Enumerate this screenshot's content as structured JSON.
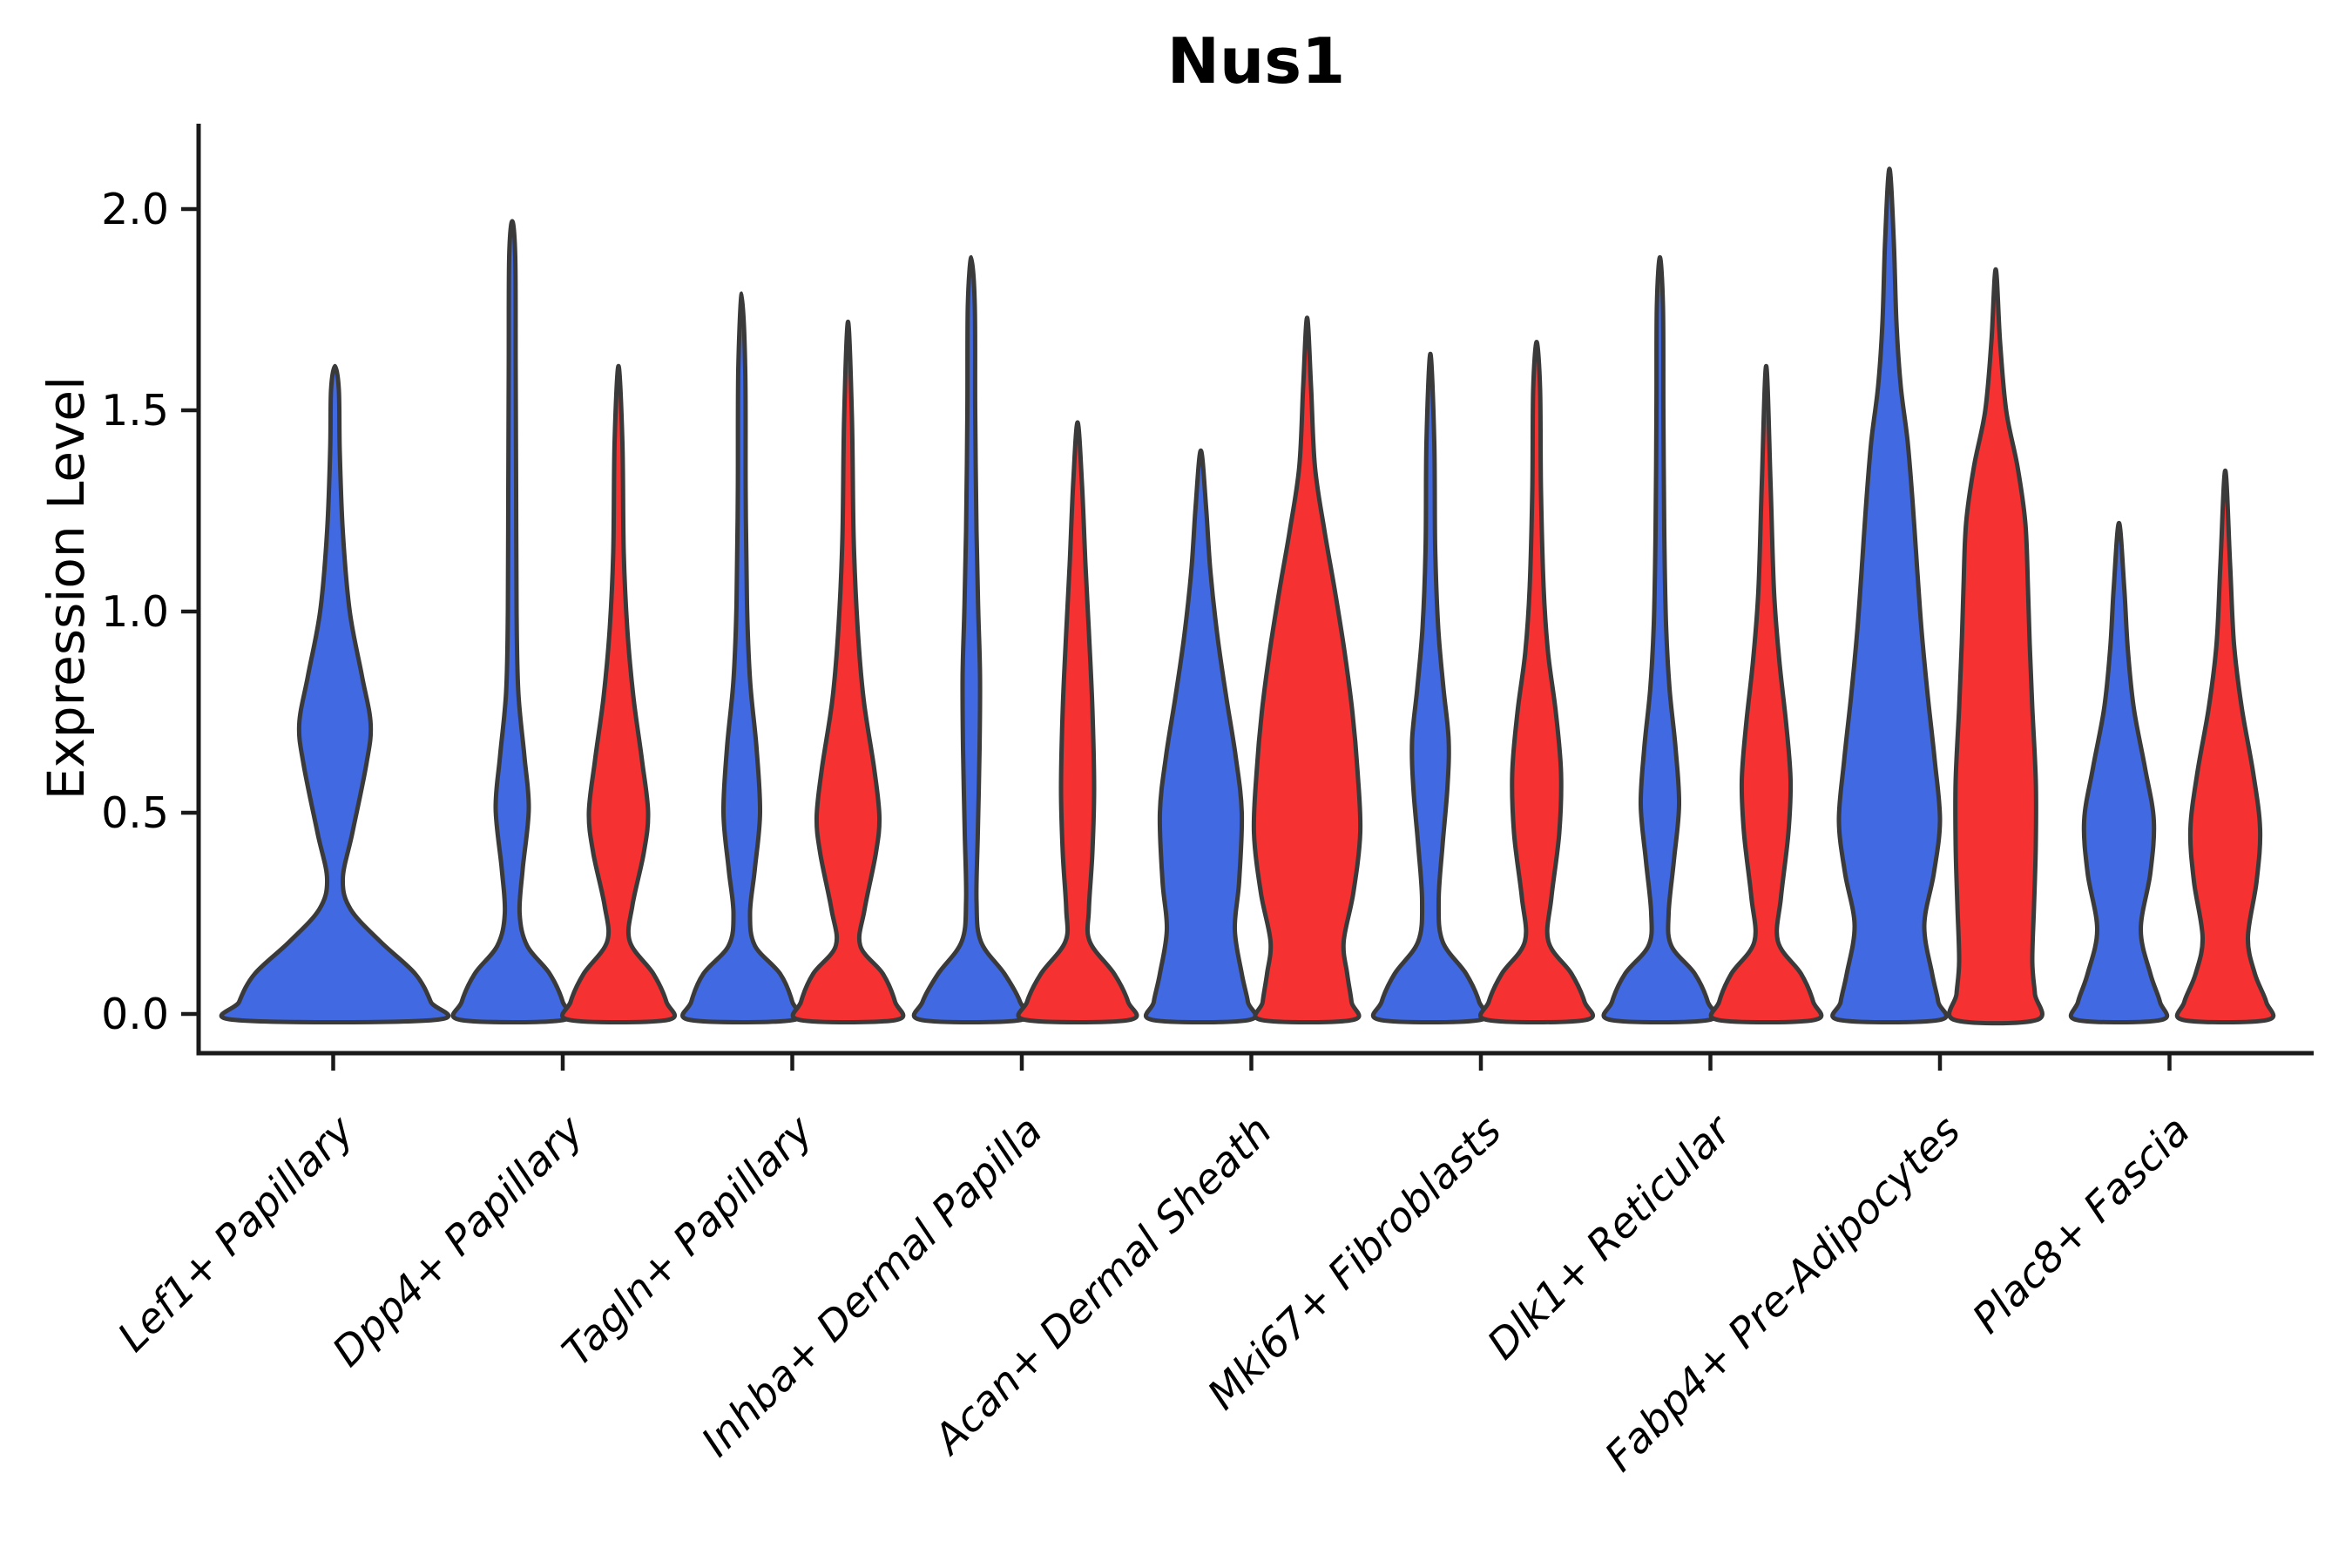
{
  "title": "Nus1",
  "y_axis": {
    "label": "Expression Level",
    "tick_labels": [
      "0.0",
      "0.5",
      "1.0",
      "1.5",
      "2.0"
    ]
  },
  "colors": {
    "blue": "#4169E1",
    "red": "#F53131",
    "outline": "#3A3A3A",
    "axis": "#1A1A1A",
    "text": "#000000"
  },
  "chart_data": {
    "type": "violin",
    "title": "Nus1",
    "ylabel": "Expression Level",
    "xlabel": "",
    "ylim": [
      -0.1,
      2.21
    ],
    "y_ticks": [
      0,
      0.5,
      1.0,
      1.5,
      2.0
    ],
    "grid": false,
    "legend": "none",
    "categories": [
      "Lef1+ Papillary",
      "Dpp4+ Papillary",
      "Tagln+ Papillary",
      "Inhba+ Dermal Papilla",
      "Acan+ Dermal Sheath",
      "Mki67+ Fibroblasts",
      "Dlk1+ Reticular",
      "Fabp4+ Pre-Adipocytes",
      "Plac8+ Fascia"
    ],
    "series_groups": [
      "blue",
      "red"
    ],
    "note": "Each violin profile is a list of [expression_value, half_width_px] pairs read bottom-to-top from the figure; first category has a single centered blue violin only.",
    "violins": [
      {
        "category_index": 0,
        "group": "blue",
        "peak": 1.61,
        "offset": 2,
        "profile": [
          [
            -0.015,
            114
          ],
          [
            0.03,
            110
          ],
          [
            0.1,
            92
          ],
          [
            0.18,
            52
          ],
          [
            0.26,
            18
          ],
          [
            0.335,
            9
          ],
          [
            0.45,
            20
          ],
          [
            0.62,
            36
          ],
          [
            0.72,
            41
          ],
          [
            0.84,
            31
          ],
          [
            1.0,
            17
          ],
          [
            1.2,
            9
          ],
          [
            1.4,
            5.5
          ],
          [
            1.55,
            4.5
          ],
          [
            1.61,
            0
          ]
        ]
      },
      {
        "category_index": 1,
        "group": "blue",
        "peak": 1.97,
        "offset": -58,
        "profile": [
          [
            -0.015,
            59
          ],
          [
            0.03,
            58
          ],
          [
            0.1,
            43
          ],
          [
            0.17,
            17
          ],
          [
            0.25,
            8.5
          ],
          [
            0.36,
            12
          ],
          [
            0.51,
            19
          ],
          [
            0.64,
            14
          ],
          [
            0.8,
            7
          ],
          [
            1.0,
            5
          ],
          [
            1.3,
            4.5
          ],
          [
            1.6,
            4
          ],
          [
            1.88,
            3.5
          ],
          [
            1.97,
            0
          ]
        ]
      },
      {
        "category_index": 1,
        "group": "red",
        "peak": 1.61,
        "offset": 64,
        "profile": [
          [
            -0.015,
            56
          ],
          [
            0.03,
            55
          ],
          [
            0.1,
            40
          ],
          [
            0.18,
            13
          ],
          [
            0.27,
            16
          ],
          [
            0.4,
            29
          ],
          [
            0.5,
            34
          ],
          [
            0.63,
            27
          ],
          [
            0.79,
            17
          ],
          [
            0.96,
            10
          ],
          [
            1.15,
            6
          ],
          [
            1.42,
            4.5
          ],
          [
            1.61,
            0
          ]
        ]
      },
      {
        "category_index": 2,
        "group": "blue",
        "peak": 1.79,
        "offset": -58,
        "profile": [
          [
            -0.015,
            59
          ],
          [
            0.03,
            58
          ],
          [
            0.1,
            44
          ],
          [
            0.17,
            15
          ],
          [
            0.25,
            9.5
          ],
          [
            0.36,
            15
          ],
          [
            0.5,
            21
          ],
          [
            0.66,
            17
          ],
          [
            0.83,
            9.5
          ],
          [
            1.02,
            6
          ],
          [
            1.3,
            4.5
          ],
          [
            1.6,
            4
          ],
          [
            1.79,
            0
          ]
        ]
      },
      {
        "category_index": 2,
        "group": "red",
        "peak": 1.72,
        "offset": 64,
        "profile": [
          [
            -0.015,
            55
          ],
          [
            0.03,
            54
          ],
          [
            0.1,
            40
          ],
          [
            0.17,
            14
          ],
          [
            0.26,
            19
          ],
          [
            0.4,
            32
          ],
          [
            0.49,
            36
          ],
          [
            0.61,
            30
          ],
          [
            0.78,
            18
          ],
          [
            0.96,
            11
          ],
          [
            1.18,
            6.5
          ],
          [
            1.48,
            4.5
          ],
          [
            1.72,
            0
          ]
        ]
      },
      {
        "category_index": 3,
        "group": "blue",
        "peak": 1.88,
        "offset": -58,
        "profile": [
          [
            -0.015,
            57
          ],
          [
            0.03,
            56
          ],
          [
            0.1,
            38
          ],
          [
            0.18,
            11
          ],
          [
            0.28,
            6
          ],
          [
            0.45,
            7.5
          ],
          [
            0.66,
            9.5
          ],
          [
            0.84,
            10
          ],
          [
            1.0,
            8
          ],
          [
            1.2,
            6
          ],
          [
            1.5,
            4.5
          ],
          [
            1.76,
            4
          ],
          [
            1.88,
            0
          ]
        ]
      },
      {
        "category_index": 3,
        "group": "red",
        "peak": 1.47,
        "offset": 64,
        "profile": [
          [
            -0.015,
            59
          ],
          [
            0.03,
            58
          ],
          [
            0.1,
            42
          ],
          [
            0.18,
            14
          ],
          [
            0.26,
            13
          ],
          [
            0.4,
            17
          ],
          [
            0.56,
            19
          ],
          [
            0.76,
            17
          ],
          [
            0.95,
            13
          ],
          [
            1.12,
            9
          ],
          [
            1.32,
            5
          ],
          [
            1.47,
            0
          ]
        ]
      },
      {
        "category_index": 4,
        "group": "blue",
        "peak": 1.4,
        "offset": -58,
        "profile": [
          [
            -0.015,
            55
          ],
          [
            0.03,
            54
          ],
          [
            0.1,
            47
          ],
          [
            0.21,
            39
          ],
          [
            0.33,
            44
          ],
          [
            0.5,
            47
          ],
          [
            0.64,
            40
          ],
          [
            0.79,
            29
          ],
          [
            0.94,
            19
          ],
          [
            1.1,
            11
          ],
          [
            1.26,
            6
          ],
          [
            1.4,
            0
          ]
        ]
      },
      {
        "category_index": 4,
        "group": "red",
        "peak": 1.73,
        "offset": 64,
        "profile": [
          [
            -0.015,
            52
          ],
          [
            0.03,
            51
          ],
          [
            0.1,
            46
          ],
          [
            0.18,
            42
          ],
          [
            0.3,
            53
          ],
          [
            0.45,
            61
          ],
          [
            0.6,
            58
          ],
          [
            0.75,
            52
          ],
          [
            0.9,
            43
          ],
          [
            1.05,
            32
          ],
          [
            1.2,
            20
          ],
          [
            1.36,
            9
          ],
          [
            1.56,
            4.5
          ],
          [
            1.73,
            0
          ]
        ]
      },
      {
        "category_index": 5,
        "group": "blue",
        "peak": 1.64,
        "offset": -58,
        "profile": [
          [
            -0.015,
            57
          ],
          [
            0.03,
            56
          ],
          [
            0.1,
            41
          ],
          [
            0.18,
            14
          ],
          [
            0.28,
            9.5
          ],
          [
            0.42,
            14
          ],
          [
            0.56,
            19.5
          ],
          [
            0.68,
            21
          ],
          [
            0.81,
            15
          ],
          [
            0.96,
            9
          ],
          [
            1.16,
            5.5
          ],
          [
            1.42,
            4.5
          ],
          [
            1.64,
            0
          ]
        ]
      },
      {
        "category_index": 5,
        "group": "red",
        "peak": 1.67,
        "offset": 64,
        "profile": [
          [
            -0.015,
            56
          ],
          [
            0.03,
            55
          ],
          [
            0.1,
            40
          ],
          [
            0.18,
            13.5
          ],
          [
            0.29,
            17
          ],
          [
            0.45,
            26
          ],
          [
            0.6,
            28
          ],
          [
            0.75,
            22
          ],
          [
            0.9,
            13
          ],
          [
            1.06,
            8
          ],
          [
            1.3,
            5
          ],
          [
            1.55,
            4
          ],
          [
            1.67,
            0
          ]
        ]
      },
      {
        "category_index": 6,
        "group": "blue",
        "peak": 1.88,
        "offset": -58,
        "profile": [
          [
            -0.015,
            56
          ],
          [
            0.03,
            55
          ],
          [
            0.1,
            40
          ],
          [
            0.17,
            13
          ],
          [
            0.25,
            10
          ],
          [
            0.38,
            16
          ],
          [
            0.52,
            22
          ],
          [
            0.66,
            18
          ],
          [
            0.81,
            11
          ],
          [
            0.97,
            7
          ],
          [
            1.2,
            5
          ],
          [
            1.5,
            4
          ],
          [
            1.76,
            3.5
          ],
          [
            1.88,
            0
          ]
        ]
      },
      {
        "category_index": 6,
        "group": "red",
        "peak": 1.61,
        "offset": 64,
        "profile": [
          [
            -0.015,
            55
          ],
          [
            0.03,
            54
          ],
          [
            0.1,
            40
          ],
          [
            0.18,
            13.5
          ],
          [
            0.29,
            17
          ],
          [
            0.45,
            25.5
          ],
          [
            0.58,
            28
          ],
          [
            0.72,
            23
          ],
          [
            0.88,
            15
          ],
          [
            1.05,
            9
          ],
          [
            1.32,
            5
          ],
          [
            1.61,
            0
          ]
        ]
      },
      {
        "category_index": 7,
        "group": "blue",
        "peak": 2.1,
        "offset": -58,
        "profile": [
          [
            -0.015,
            57
          ],
          [
            0.03,
            56
          ],
          [
            0.1,
            49
          ],
          [
            0.22,
            40
          ],
          [
            0.35,
            51
          ],
          [
            0.48,
            58
          ],
          [
            0.63,
            52
          ],
          [
            0.79,
            44
          ],
          [
            0.95,
            37
          ],
          [
            1.1,
            32
          ],
          [
            1.26,
            27
          ],
          [
            1.42,
            21
          ],
          [
            1.56,
            13
          ],
          [
            1.72,
            8
          ],
          [
            1.92,
            5
          ],
          [
            2.1,
            0
          ]
        ]
      },
      {
        "category_index": 7,
        "group": "red",
        "peak": 1.85,
        "offset": 64,
        "profile": [
          [
            -0.015,
            47
          ],
          [
            0.05,
            45
          ],
          [
            0.13,
            42
          ],
          [
            0.27,
            44
          ],
          [
            0.42,
            46
          ],
          [
            0.58,
            46
          ],
          [
            0.76,
            42
          ],
          [
            0.92,
            39
          ],
          [
            1.06,
            37
          ],
          [
            1.22,
            34
          ],
          [
            1.36,
            25
          ],
          [
            1.5,
            12
          ],
          [
            1.67,
            5
          ],
          [
            1.85,
            0
          ]
        ]
      },
      {
        "category_index": 8,
        "group": "blue",
        "peak": 1.22,
        "offset": -58,
        "profile": [
          [
            -0.015,
            48
          ],
          [
            0.03,
            47
          ],
          [
            0.1,
            36
          ],
          [
            0.21,
            25
          ],
          [
            0.35,
            36
          ],
          [
            0.48,
            40
          ],
          [
            0.61,
            30
          ],
          [
            0.76,
            17
          ],
          [
            0.91,
            10
          ],
          [
            1.06,
            6
          ],
          [
            1.22,
            0
          ]
        ]
      },
      {
        "category_index": 8,
        "group": "red",
        "peak": 1.35,
        "offset": 64,
        "profile": [
          [
            -0.015,
            48
          ],
          [
            0.03,
            47
          ],
          [
            0.1,
            34
          ],
          [
            0.19,
            26
          ],
          [
            0.33,
            36
          ],
          [
            0.46,
            40
          ],
          [
            0.6,
            32
          ],
          [
            0.76,
            19
          ],
          [
            0.92,
            10
          ],
          [
            1.12,
            5.5
          ],
          [
            1.35,
            0
          ]
        ]
      }
    ]
  }
}
